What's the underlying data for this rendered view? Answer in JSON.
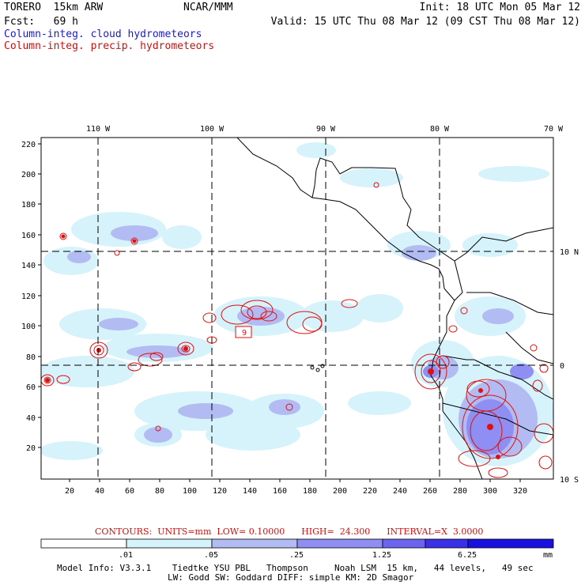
{
  "header": {
    "model": "TORERO  15km ARW",
    "org": "NCAR/MMM",
    "init": "Init: 18 UTC Mon 05 Mar 12",
    "fcst": "Fcst:   69 h",
    "valid": "Valid: 15 UTC Thu 08 Mar 12 (09 CST Thu 08 Mar 12)",
    "field1": "Column-integ. cloud hydrometeors",
    "field2": "Column-integ. precip. hydrometeors"
  },
  "axes": {
    "top_lon": [
      "110 W",
      "100 W",
      "90 W",
      "80 W",
      "70 W"
    ],
    "right_lat": [
      "10 N",
      "0",
      "10 S"
    ],
    "left_y": [
      "220",
      "200",
      "180",
      "160",
      "140",
      "120",
      "100",
      "80",
      "60",
      "40",
      "20"
    ],
    "bottom_x": [
      "20",
      "40",
      "60",
      "80",
      "100",
      "120",
      "140",
      "160",
      "180",
      "200",
      "220",
      "240",
      "260",
      "280",
      "300",
      "320"
    ]
  },
  "contour_box_label": "9",
  "contours_note": "CONTOURS:  UNITS=mm  LOW= 0.10000      HIGH=  24.300      INTERVAL=X  3.0000",
  "colorbar": {
    "labels": [
      ".01",
      ".05",
      ".25",
      "1.25",
      "6.25",
      "mm"
    ],
    "colors": [
      "#ffffff",
      "#d6f2fb",
      "#b2bcf2",
      "#8f8ef2",
      "#6b64ee",
      "#3a30e8",
      "#1a10e0"
    ]
  },
  "footer": {
    "line1": "Model Info: V3.3.1    Tiedtke YSU PBL   Thompson     Noah LSM  15 km,   44 levels,   49 sec",
    "line2": "LW: Godd SW: Goddard DIFF: simple KM: 2D Smagor"
  }
}
